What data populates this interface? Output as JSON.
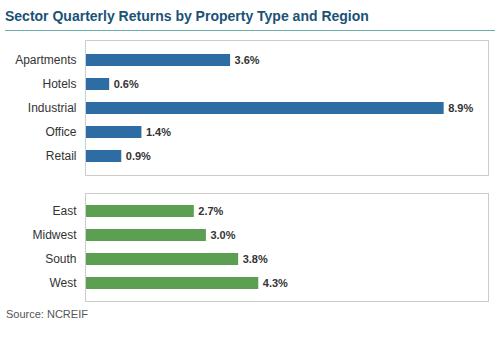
{
  "chart_data": [
    {
      "type": "bar",
      "title": "Sector Quarterly Returns by Property Type and Region",
      "orientation": "horizontal",
      "categories": [
        "Apartments",
        "Hotels",
        "Industrial",
        "Office",
        "Retail"
      ],
      "values": [
        3.6,
        0.6,
        8.9,
        1.4,
        0.9
      ],
      "value_labels": [
        "3.6%",
        "0.6%",
        "8.9%",
        "1.4%",
        "0.9%"
      ],
      "color": "#2E6DA4",
      "xlim": [
        0,
        10.0
      ],
      "data_labels": true,
      "tick_labels": "y",
      "grid": false
    },
    {
      "type": "bar",
      "orientation": "horizontal",
      "categories": [
        "East",
        "Midwest",
        "South",
        "West"
      ],
      "values": [
        2.7,
        3.0,
        3.8,
        4.3
      ],
      "value_labels": [
        "2.7%",
        "3.0%",
        "3.8%",
        "4.3%"
      ],
      "color": "#5C9E52",
      "xlim": [
        0,
        10.0
      ],
      "data_labels": true,
      "tick_labels": "y",
      "grid": false,
      "annotations": [
        "Source: NCREIF"
      ]
    }
  ]
}
